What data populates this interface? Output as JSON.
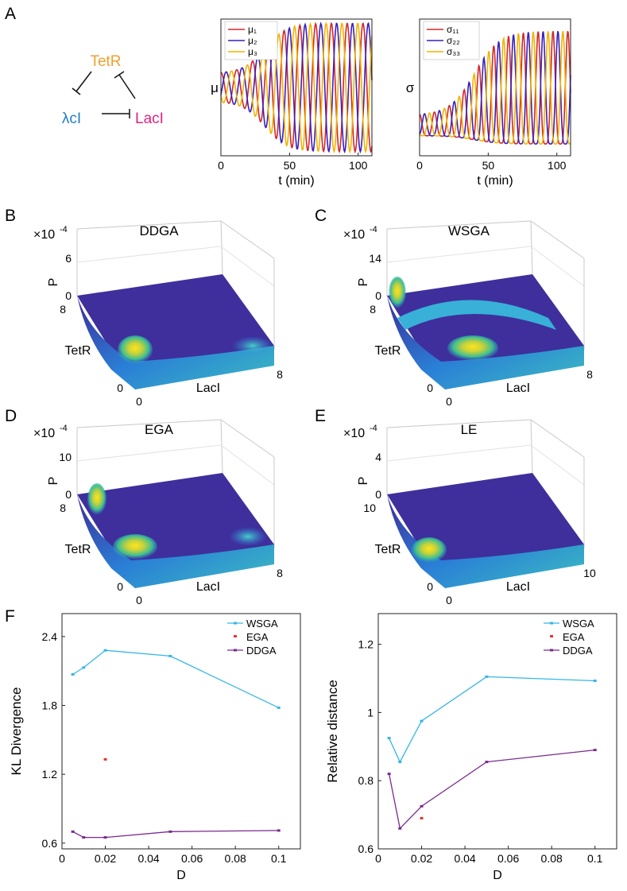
{
  "panel_letters": {
    "a": "A",
    "b": "B",
    "c": "C",
    "d": "D",
    "e": "E",
    "f": "F"
  },
  "network": {
    "nodes": [
      "TetR",
      "λcI",
      "LacI"
    ],
    "colors": {
      "TetR": "#f0a030",
      "λcI": "#1f7fc4",
      "LacI": "#e0237f"
    }
  },
  "series_colors": {
    "c1": "#d62728",
    "c2": "#3a1fbf",
    "c3": "#f0b400",
    "wsga": "#36b6e6",
    "ega": "#e8332e",
    "ddga": "#7b2a8e"
  },
  "surface_panels": [
    {
      "title": "DDGA",
      "scale": "×10",
      "exp": "-4",
      "zmax": "6",
      "zmin": "0",
      "tetr_max": "8",
      "lac_max": "8",
      "tetr_min": "0",
      "lac_min": "0",
      "ylabel": "TetR",
      "xlabel": "LacI",
      "zlabel": "P"
    },
    {
      "title": "WSGA",
      "scale": "×10",
      "exp": "-4",
      "zmax": "14",
      "zmin": "0",
      "tetr_max": "8",
      "lac_max": "8",
      "tetr_min": "0",
      "lac_min": "0",
      "ylabel": "TetR",
      "xlabel": "LacI",
      "zlabel": "P"
    },
    {
      "title": "EGA",
      "scale": "×10",
      "exp": "-4",
      "zmax": "10",
      "zmin": "0",
      "tetr_max": "8",
      "lac_max": "8",
      "tetr_min": "0",
      "lac_min": "0",
      "ylabel": "TetR",
      "xlabel": "LacI",
      "zlabel": "P"
    },
    {
      "title": "LE",
      "scale": "×10",
      "exp": "-4",
      "zmax": "4",
      "zmin": "0",
      "tetr_max": "10",
      "lac_max": "10",
      "tetr_min": "0",
      "lac_min": "0",
      "ylabel": "TetR",
      "xlabel": "LacI",
      "zlabel": "P"
    }
  ],
  "chart_data": [
    {
      "id": "mu",
      "type": "line",
      "title": "",
      "xlabel": "t (min)",
      "ylabel": "μ",
      "xlim": [
        0,
        110
      ],
      "ylim": [
        0,
        1
      ],
      "xticks": [
        "0",
        "50",
        "100"
      ],
      "xtick_values": [
        0,
        50,
        100
      ],
      "legend": [
        "μ₁",
        "μ₂",
        "μ₃"
      ],
      "series": [
        {
          "name": "μ₁",
          "phase": 0
        },
        {
          "name": "μ₂",
          "phase": 2.094
        },
        {
          "name": "μ₃",
          "phase": 4.189
        }
      ]
    },
    {
      "id": "sigma",
      "type": "line",
      "title": "",
      "xlabel": "t (min)",
      "ylabel": "σ",
      "xlim": [
        0,
        110
      ],
      "ylim": [
        0,
        1
      ],
      "xticks": [
        "0",
        "50",
        "100"
      ],
      "xtick_values": [
        0,
        50,
        100
      ],
      "legend": [
        "σ₁₁",
        "σ₂₂",
        "σ₃₃"
      ],
      "series": [
        {
          "name": "σ₁₁",
          "phase": 0
        },
        {
          "name": "σ₂₂",
          "phase": 2.094
        },
        {
          "name": "σ₃₃",
          "phase": 4.189
        }
      ]
    },
    {
      "id": "kl",
      "type": "line",
      "xlabel": "D",
      "ylabel": "KL Divergence",
      "xlim": [
        0,
        0.11
      ],
      "ylim": [
        0.55,
        2.6
      ],
      "xticks": [
        "0",
        "0.02",
        "0.04",
        "0.06",
        "0.08",
        "0.1"
      ],
      "xtick_values": [
        0,
        0.02,
        0.04,
        0.06,
        0.08,
        0.1
      ],
      "yticks": [
        "0.6",
        "1.2",
        "1.8",
        "2.4"
      ],
      "ytick_values": [
        0.6,
        1.2,
        1.8,
        2.4
      ],
      "legend": [
        "WSGA",
        "EGA",
        "DDGA"
      ],
      "series": [
        {
          "name": "WSGA",
          "x": [
            0.005,
            0.01,
            0.02,
            0.05,
            0.1
          ],
          "values": [
            2.07,
            2.13,
            2.28,
            2.23,
            1.78
          ]
        },
        {
          "name": "EGA",
          "x": [
            0.02
          ],
          "values": [
            1.33
          ]
        },
        {
          "name": "DDGA",
          "x": [
            0.005,
            0.01,
            0.02,
            0.05,
            0.1
          ],
          "values": [
            0.7,
            0.65,
            0.65,
            0.7,
            0.71
          ]
        }
      ]
    },
    {
      "id": "rd",
      "type": "line",
      "xlabel": "D",
      "ylabel": "Relative distance",
      "xlim": [
        0,
        0.11
      ],
      "ylim": [
        0.6,
        1.29
      ],
      "xticks": [
        "0",
        "0.02",
        "0.04",
        "0.06",
        "0.08",
        "0.1"
      ],
      "xtick_values": [
        0,
        0.02,
        0.04,
        0.06,
        0.08,
        0.1
      ],
      "yticks": [
        "0.6",
        "0.8",
        "1",
        "1.2"
      ],
      "ytick_values": [
        0.6,
        0.8,
        1,
        1.2
      ],
      "legend": [
        "WSGA",
        "EGA",
        "DDGA"
      ],
      "series": [
        {
          "name": "WSGA",
          "x": [
            0.005,
            0.01,
            0.02,
            0.05,
            0.1
          ],
          "values": [
            0.925,
            0.855,
            0.975,
            1.105,
            1.093
          ]
        },
        {
          "name": "EGA",
          "x": [
            0.02
          ],
          "values": [
            0.69
          ]
        },
        {
          "name": "DDGA",
          "x": [
            0.005,
            0.01,
            0.02,
            0.05,
            0.1
          ],
          "values": [
            0.82,
            0.66,
            0.725,
            0.855,
            0.89
          ]
        }
      ]
    }
  ]
}
